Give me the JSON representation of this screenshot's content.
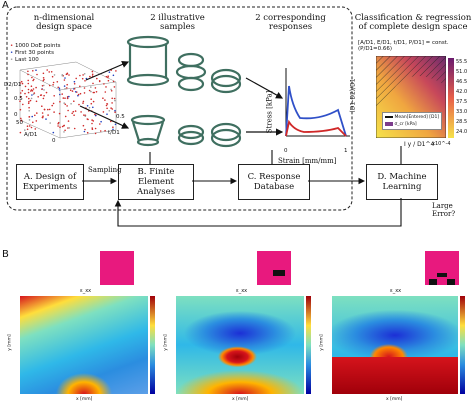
{
  "panels": {
    "a": "A",
    "b": "B"
  },
  "top": {
    "col1": "n-dimensional\ndesign space",
    "col2": "2 illustrative\nsamples",
    "col3": "2 corresponding\nresponses",
    "col4": "Classification & regression\nof complete design space"
  },
  "legend3d": {
    "items": [
      "1000 DoE points",
      "First 30 points",
      "Last 100"
    ],
    "colors": [
      "#d02a2a",
      "#2040c0",
      "#9c9c9c"
    ]
  },
  "axes3d": {
    "zlabel": "D2/D1",
    "xlabel": "A/D1",
    "ylabel": "t/D1",
    "ticks_x": [
      "50",
      "0"
    ],
    "ticks_y": [
      "0.5"
    ],
    "ticks_z": [
      "0.5",
      "0"
    ]
  },
  "stress_plot": {
    "ylabel": "Stress [kPa]",
    "xlabel": "Strain [mm/mm]",
    "xticks": [
      "0",
      "1"
    ],
    "colors": [
      "#3050c8",
      "#d02828"
    ]
  },
  "classification": {
    "constraint": "[A/D1, E/D1, t/D1, P/D1] = const.  (P/D1=0.66)",
    "ylabel": "(D1-D2)/D1",
    "xlabel": "I y / D1^4",
    "x_mult": "x10^-4",
    "colorbar_ticks": [
      "55.5",
      "51.0",
      "46.5",
      "42.0",
      "37.5",
      "33.0",
      "28.5",
      "24.0"
    ],
    "legend": [
      "Mean[Entered] [D1]",
      "σ_cr [kPa]"
    ]
  },
  "flow": {
    "a": "A. Design of\nExperiments",
    "b": "B. Finite Element\nAnalyses",
    "c": "C. Response\nDatabase",
    "d": "D. Machine\nLearning",
    "sampling": "Sampling",
    "error": "Large\nError?"
  },
  "maps": [
    {
      "xlabel": "x [mm]",
      "ylabel": "y [mm]",
      "title": "ε_xx"
    },
    {
      "xlabel": "x [mm]",
      "ylabel": "y [mm]",
      "title": "ε_xx"
    },
    {
      "xlabel": "x [mm]",
      "ylabel": "y [mm]",
      "title": "ε_xx"
    }
  ],
  "palette": {
    "pink": "#e8197e",
    "cold": "#1c2fd6",
    "hot": "#d6141c"
  }
}
